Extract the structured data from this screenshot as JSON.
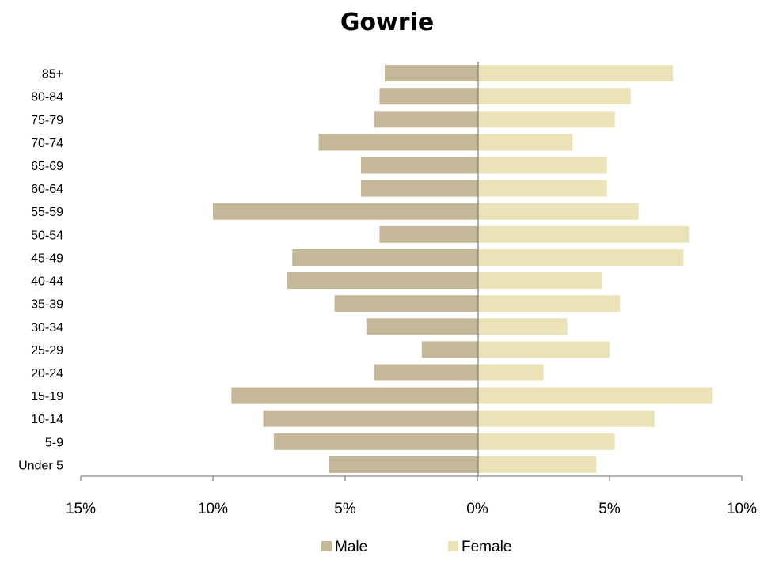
{
  "colors": {
    "male": "#c4b899",
    "female": "#ebe2b8",
    "axis": "#868686"
  },
  "chart_data": {
    "type": "bar",
    "orientation": "horizontal",
    "title": "Gowrie",
    "xlabel": "",
    "ylabel": "",
    "categories": [
      "85+",
      "80-84",
      "75-79",
      "70-74",
      "65-69",
      "60-64",
      "55-59",
      "50-54",
      "45-49",
      "40-44",
      "35-39",
      "30-34",
      "25-29",
      "20-24",
      "15-19",
      "10-14",
      "5-9",
      "Under 5"
    ],
    "series": [
      {
        "name": "Male",
        "values": [
          3.5,
          3.7,
          3.9,
          6.0,
          4.4,
          4.4,
          10.0,
          3.7,
          7.0,
          7.2,
          5.4,
          4.2,
          2.1,
          3.9,
          9.3,
          8.1,
          7.7,
          5.6
        ]
      },
      {
        "name": "Female",
        "values": [
          7.4,
          5.8,
          5.2,
          3.6,
          4.9,
          4.9,
          6.1,
          8.0,
          7.8,
          4.7,
          5.4,
          3.4,
          5.0,
          2.5,
          8.9,
          6.7,
          5.2,
          4.5
        ]
      }
    ],
    "xlim": [
      -15,
      10
    ],
    "xticks": [
      -15,
      -10,
      -5,
      0,
      5,
      10
    ],
    "xtick_labels": [
      "15%",
      "10%",
      "5%",
      "0%",
      "5%",
      "10%"
    ],
    "grid": false,
    "legend_position": "bottom"
  }
}
